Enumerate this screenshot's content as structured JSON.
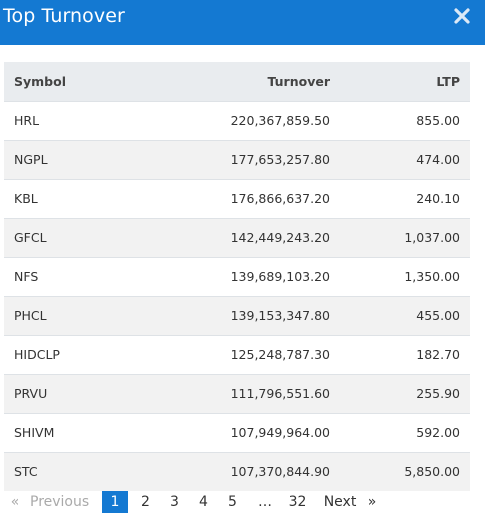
{
  "modal": {
    "title": "Top Turnover"
  },
  "table": {
    "headers": {
      "symbol": "Symbol",
      "turnover": "Turnover",
      "ltp": "LTP"
    },
    "rows": [
      {
        "symbol": "HRL",
        "turnover": "220,367,859.50",
        "ltp": "855.00"
      },
      {
        "symbol": "NGPL",
        "turnover": "177,653,257.80",
        "ltp": "474.00"
      },
      {
        "symbol": "KBL",
        "turnover": "176,866,637.20",
        "ltp": "240.10"
      },
      {
        "symbol": "GFCL",
        "turnover": "142,449,243.20",
        "ltp": "1,037.00"
      },
      {
        "symbol": "NFS",
        "turnover": "139,689,103.20",
        "ltp": "1,350.00"
      },
      {
        "symbol": "PHCL",
        "turnover": "139,153,347.80",
        "ltp": "455.00"
      },
      {
        "symbol": "HIDCLP",
        "turnover": "125,248,787.30",
        "ltp": "182.70"
      },
      {
        "symbol": "PRVU",
        "turnover": "111,796,551.60",
        "ltp": "255.90"
      },
      {
        "symbol": "SHIVM",
        "turnover": "107,949,964.00",
        "ltp": "592.00"
      },
      {
        "symbol": "STC",
        "turnover": "107,370,844.90",
        "ltp": "5,850.00"
      }
    ]
  },
  "pagination": {
    "prev_arrow": "«",
    "previous": "Previous",
    "pages": [
      "1",
      "2",
      "3",
      "4",
      "5"
    ],
    "ellipsis": "…",
    "last_page": "32",
    "next": "Next",
    "next_arrow": "»",
    "active_page": "1"
  },
  "colors": {
    "header_bg": "#1479d2",
    "active_page_bg": "#1479d2",
    "table_head_bg": "#e9ecef",
    "row_stripe": "#f2f2f2"
  }
}
